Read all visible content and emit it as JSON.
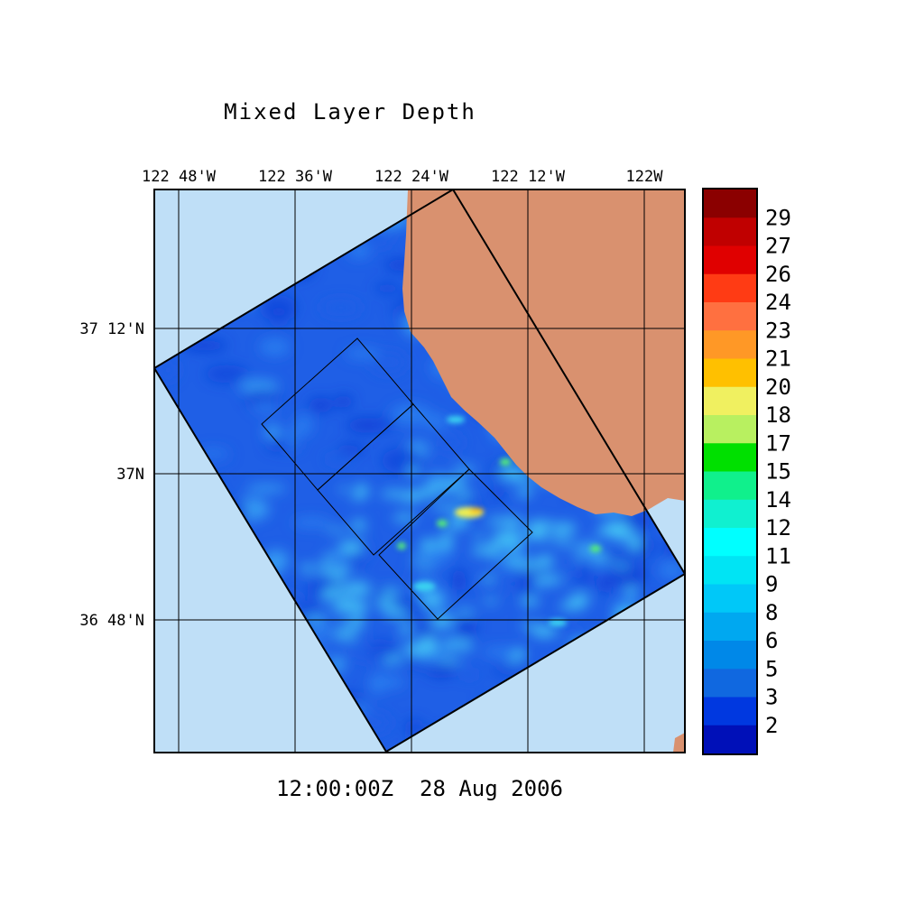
{
  "title": "Mixed Layer Depth",
  "timestamp": "12:00:00Z  28 Aug 2006",
  "map": {
    "lon_labels": [
      "122 48'W",
      "122 36'W",
      "122 24'W",
      "122 12'W",
      "122W"
    ],
    "lat_labels": [
      "37 12'N",
      "37N",
      "36 48'N"
    ],
    "colors": {
      "ocean_background": "#bfdff7",
      "land": "#d9916f",
      "model_domain_base": "#1f5fe6",
      "grid_lines": "#000000"
    },
    "hotspot_colors": [
      "#3ad4f0",
      "#55ee77",
      "#f0f050",
      "#ffc000"
    ]
  },
  "colorbar": {
    "labels": [
      "29",
      "27",
      "26",
      "24",
      "23",
      "21",
      "20",
      "18",
      "17",
      "15",
      "14",
      "12",
      "11",
      "9",
      "8",
      "6",
      "5",
      "3",
      "2"
    ],
    "colors_top_to_bottom": [
      "#8b0000",
      "#c00000",
      "#e00000",
      "#ff3b14",
      "#ff7040",
      "#ff9826",
      "#ffc000",
      "#f0f060",
      "#b8f060",
      "#00e000",
      "#10f08c",
      "#10f0d0",
      "#00ffff",
      "#00e4f4",
      "#00c8f8",
      "#00a8f0",
      "#0088e8",
      "#1068e0",
      "#0038e0",
      "#0010b8"
    ]
  }
}
